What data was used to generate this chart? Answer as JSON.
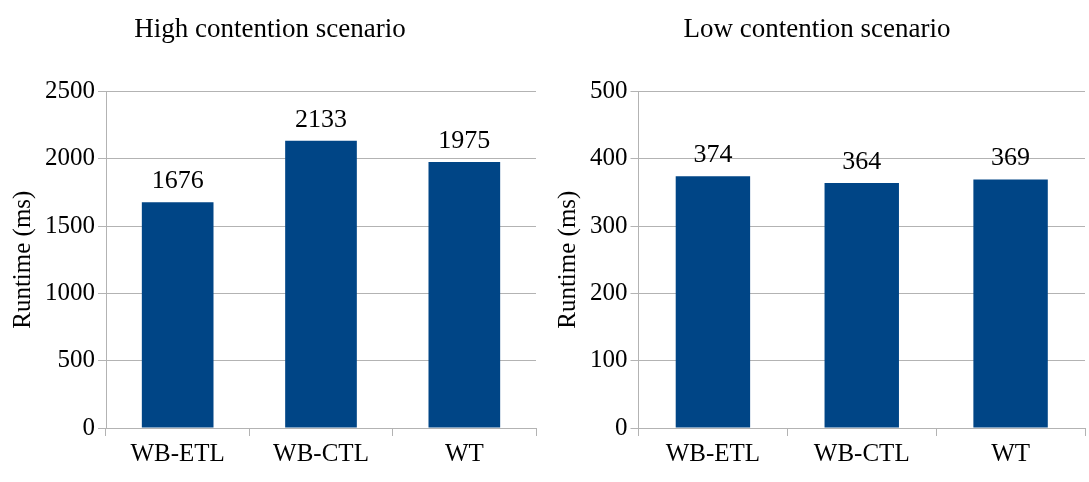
{
  "chart_data": [
    {
      "type": "bar",
      "title": "High contention scenario",
      "ylabel": "Runtime (ms)",
      "categories": [
        "WB-ETL",
        "WB-CTL",
        "WT"
      ],
      "values": [
        1676,
        2133,
        1975
      ],
      "color": "#004586",
      "ylim": [
        0,
        2500
      ],
      "yticks": [
        0,
        500,
        1000,
        1500,
        2000,
        2500
      ],
      "grid": "y",
      "data_labels": true
    },
    {
      "type": "bar",
      "title": "Low contention scenario",
      "ylabel": "Runtime (ms)",
      "categories": [
        "WB-ETL",
        "WB-CTL",
        "WT"
      ],
      "values": [
        374,
        364,
        369
      ],
      "color": "#004586",
      "ylim": [
        0,
        500
      ],
      "yticks": [
        0,
        100,
        200,
        300,
        400,
        500
      ],
      "grid": "y",
      "data_labels": true
    }
  ]
}
